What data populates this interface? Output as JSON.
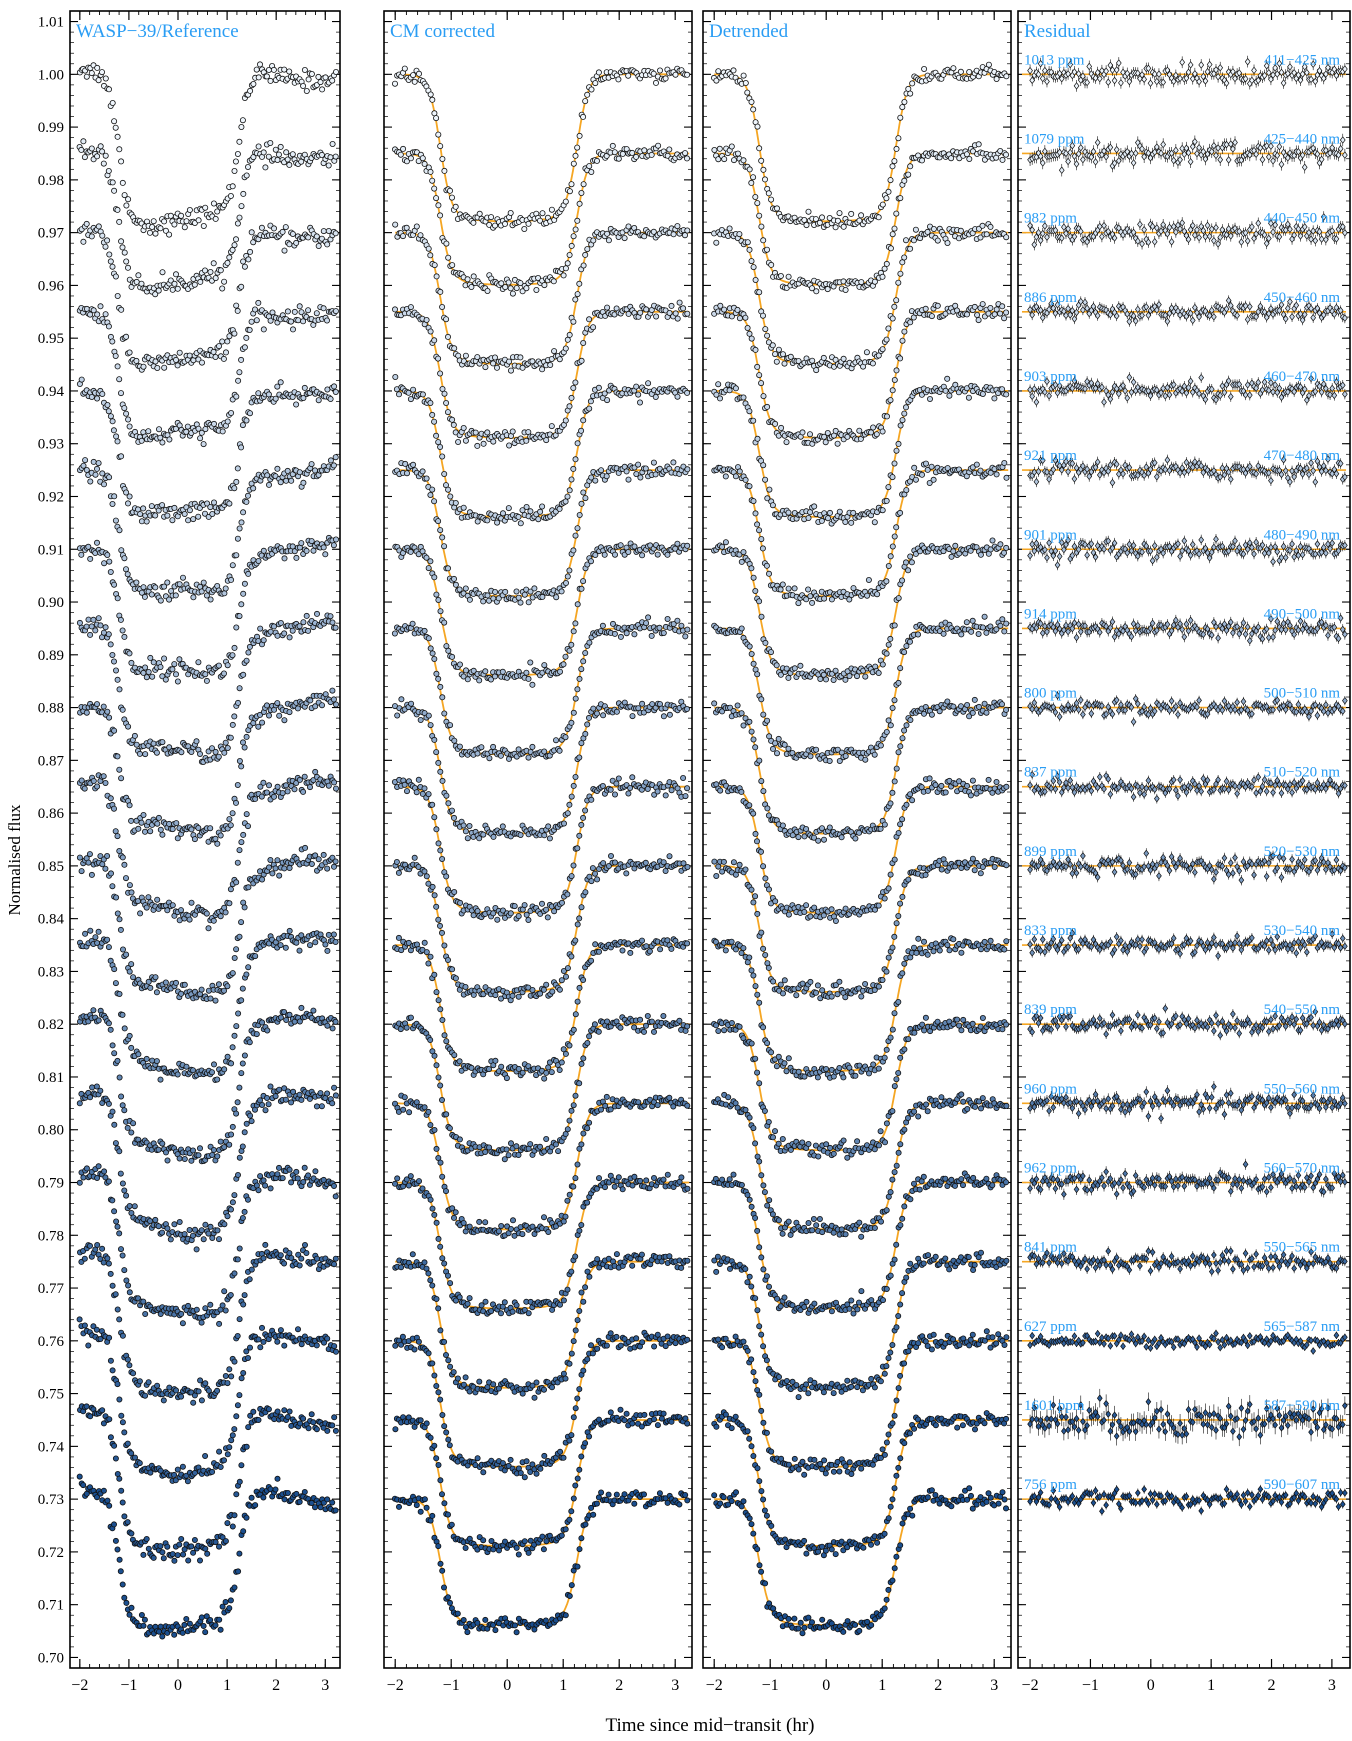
{
  "figure": {
    "ylabel": "Normalised flux",
    "xlabel": "Time since mid−transit (hr)",
    "colors": {
      "frame": "#000000",
      "label": "#2a9df4",
      "model": "#f5a623",
      "point_light": "#eef5fc",
      "point_dark": "#1b4f8f",
      "point_edge": "#111111"
    }
  },
  "chart_data": [
    {
      "type": "scatter",
      "title": "WASP−39/Reference",
      "xlim": [
        -2.2,
        3.3
      ],
      "ylim": [
        0.698,
        1.012
      ],
      "xticks": [
        -2,
        -1,
        0,
        1,
        2,
        3
      ],
      "yticks": [
        0.7,
        0.71,
        0.72,
        0.73,
        0.74,
        0.75,
        0.76,
        0.77,
        0.78,
        0.79,
        0.8,
        0.81,
        0.82,
        0.83,
        0.84,
        0.85,
        0.86,
        0.87,
        0.88,
        0.89,
        0.9,
        0.91,
        0.92,
        0.93,
        0.94,
        0.95,
        0.96,
        0.97,
        0.98,
        0.99,
        1.0,
        1.01
      ],
      "series_style": "raw",
      "series": [
        {
          "baseline": 1.0,
          "depth": 0.028,
          "ingress": -1.35,
          "egress": 1.2
        },
        {
          "baseline": 0.985,
          "depth": 0.025,
          "ingress": -1.35,
          "egress": 1.2
        },
        {
          "baseline": 0.97,
          "depth": 0.025,
          "ingress": -1.35,
          "egress": 1.2
        },
        {
          "baseline": 0.955,
          "depth": 0.024,
          "ingress": -1.35,
          "egress": 1.2
        },
        {
          "baseline": 0.94,
          "depth": 0.024,
          "ingress": -1.35,
          "egress": 1.2
        },
        {
          "baseline": 0.925,
          "depth": 0.024,
          "ingress": -1.35,
          "egress": 1.2
        },
        {
          "baseline": 0.91,
          "depth": 0.024,
          "ingress": -1.35,
          "egress": 1.2
        },
        {
          "baseline": 0.895,
          "depth": 0.024,
          "ingress": -1.35,
          "egress": 1.2
        },
        {
          "baseline": 0.88,
          "depth": 0.024,
          "ingress": -1.35,
          "egress": 1.2
        },
        {
          "baseline": 0.865,
          "depth": 0.024,
          "ingress": -1.35,
          "egress": 1.2
        },
        {
          "baseline": 0.85,
          "depth": 0.024,
          "ingress": -1.35,
          "egress": 1.2
        },
        {
          "baseline": 0.835,
          "depth": 0.024,
          "ingress": -1.35,
          "egress": 1.2
        },
        {
          "baseline": 0.82,
          "depth": 0.024,
          "ingress": -1.35,
          "egress": 1.2
        },
        {
          "baseline": 0.805,
          "depth": 0.024,
          "ingress": -1.35,
          "egress": 1.2
        },
        {
          "baseline": 0.79,
          "depth": 0.024,
          "ingress": -1.35,
          "egress": 1.2
        },
        {
          "baseline": 0.775,
          "depth": 0.024,
          "ingress": -1.35,
          "egress": 1.2
        },
        {
          "baseline": 0.76,
          "depth": 0.024,
          "ingress": -1.35,
          "egress": 1.2
        },
        {
          "baseline": 0.745,
          "depth": 0.024,
          "ingress": -1.35,
          "egress": 1.2
        },
        {
          "baseline": 0.73,
          "depth": 0.024,
          "ingress": -1.35,
          "egress": 1.2
        }
      ]
    },
    {
      "type": "scatter",
      "title": "CM corrected",
      "xlim": [
        -2.2,
        3.3
      ],
      "ylim": [
        0.698,
        1.012
      ],
      "xticks": [
        -2,
        -1,
        0,
        1,
        2,
        3
      ],
      "series_style": "model",
      "series": [
        {
          "baseline": 1.0,
          "depth": 0.028
        },
        {
          "baseline": 0.985,
          "depth": 0.025
        },
        {
          "baseline": 0.97,
          "depth": 0.025
        },
        {
          "baseline": 0.955,
          "depth": 0.024
        },
        {
          "baseline": 0.94,
          "depth": 0.024
        },
        {
          "baseline": 0.925,
          "depth": 0.024
        },
        {
          "baseline": 0.91,
          "depth": 0.024
        },
        {
          "baseline": 0.895,
          "depth": 0.024
        },
        {
          "baseline": 0.88,
          "depth": 0.024
        },
        {
          "baseline": 0.865,
          "depth": 0.024
        },
        {
          "baseline": 0.85,
          "depth": 0.024
        },
        {
          "baseline": 0.835,
          "depth": 0.024
        },
        {
          "baseline": 0.82,
          "depth": 0.024
        },
        {
          "baseline": 0.805,
          "depth": 0.024
        },
        {
          "baseline": 0.79,
          "depth": 0.024
        },
        {
          "baseline": 0.775,
          "depth": 0.024
        },
        {
          "baseline": 0.76,
          "depth": 0.024
        },
        {
          "baseline": 0.745,
          "depth": 0.024
        },
        {
          "baseline": 0.73,
          "depth": 0.024
        }
      ]
    },
    {
      "type": "scatter",
      "title": "Detrended",
      "xlim": [
        -2.2,
        3.3
      ],
      "ylim": [
        0.698,
        1.012
      ],
      "xticks": [
        -2,
        -1,
        0,
        1,
        2,
        3
      ],
      "series_style": "model",
      "series": [
        {
          "baseline": 1.0,
          "depth": 0.028
        },
        {
          "baseline": 0.985,
          "depth": 0.025
        },
        {
          "baseline": 0.97,
          "depth": 0.025
        },
        {
          "baseline": 0.955,
          "depth": 0.024
        },
        {
          "baseline": 0.94,
          "depth": 0.024
        },
        {
          "baseline": 0.925,
          "depth": 0.024
        },
        {
          "baseline": 0.91,
          "depth": 0.024
        },
        {
          "baseline": 0.895,
          "depth": 0.024
        },
        {
          "baseline": 0.88,
          "depth": 0.024
        },
        {
          "baseline": 0.865,
          "depth": 0.024
        },
        {
          "baseline": 0.85,
          "depth": 0.024
        },
        {
          "baseline": 0.835,
          "depth": 0.024
        },
        {
          "baseline": 0.82,
          "depth": 0.024
        },
        {
          "baseline": 0.805,
          "depth": 0.024
        },
        {
          "baseline": 0.79,
          "depth": 0.024
        },
        {
          "baseline": 0.775,
          "depth": 0.024
        },
        {
          "baseline": 0.76,
          "depth": 0.024
        },
        {
          "baseline": 0.745,
          "depth": 0.024
        },
        {
          "baseline": 0.73,
          "depth": 0.024
        }
      ]
    },
    {
      "type": "scatter",
      "title": "Residual",
      "xlim": [
        -2.2,
        3.3
      ],
      "ylim": [
        0.698,
        1.012
      ],
      "xticks": [
        -2,
        -1,
        0,
        1,
        2,
        3
      ],
      "series_style": "residual",
      "series": [
        {
          "baseline": 1.0,
          "rms_ppm": 1013,
          "rms_label": "1013 ppm",
          "band": "411−425 nm"
        },
        {
          "baseline": 0.985,
          "rms_ppm": 1079,
          "rms_label": "1079 ppm",
          "band": "425−440 nm"
        },
        {
          "baseline": 0.97,
          "rms_ppm": 982,
          "rms_label": "982 ppm",
          "band": "440−450 nm"
        },
        {
          "baseline": 0.955,
          "rms_ppm": 886,
          "rms_label": "886 ppm",
          "band": "450−460 nm"
        },
        {
          "baseline": 0.94,
          "rms_ppm": 903,
          "rms_label": "903 ppm",
          "band": "460−470 nm"
        },
        {
          "baseline": 0.925,
          "rms_ppm": 921,
          "rms_label": "921 ppm",
          "band": "470−480 nm"
        },
        {
          "baseline": 0.91,
          "rms_ppm": 901,
          "rms_label": "901 ppm",
          "band": "480−490 nm"
        },
        {
          "baseline": 0.895,
          "rms_ppm": 914,
          "rms_label": "914 ppm",
          "band": "490−500 nm"
        },
        {
          "baseline": 0.88,
          "rms_ppm": 800,
          "rms_label": "800 ppm",
          "band": "500−510 nm"
        },
        {
          "baseline": 0.865,
          "rms_ppm": 837,
          "rms_label": "837 ppm",
          "band": "510−520 nm"
        },
        {
          "baseline": 0.85,
          "rms_ppm": 899,
          "rms_label": "899 ppm",
          "band": "520−530 nm"
        },
        {
          "baseline": 0.835,
          "rms_ppm": 833,
          "rms_label": "833 ppm",
          "band": "530−540 nm"
        },
        {
          "baseline": 0.82,
          "rms_ppm": 839,
          "rms_label": "839 ppm",
          "band": "540−550 nm"
        },
        {
          "baseline": 0.805,
          "rms_ppm": 960,
          "rms_label": "960 ppm",
          "band": "550−560 nm"
        },
        {
          "baseline": 0.79,
          "rms_ppm": 962,
          "rms_label": "962 ppm",
          "band": "560−570 nm"
        },
        {
          "baseline": 0.775,
          "rms_ppm": 841,
          "rms_label": "841 ppm",
          "band": "550−565 nm"
        },
        {
          "baseline": 0.76,
          "rms_ppm": 627,
          "rms_label": "627 ppm",
          "band": "565−587 nm"
        },
        {
          "baseline": 0.745,
          "rms_ppm": 1601,
          "rms_label": "1601 ppm",
          "band": "587−590 nm"
        },
        {
          "baseline": 0.73,
          "rms_ppm": 756,
          "rms_label": "756 ppm",
          "band": "590−607 nm"
        }
      ]
    }
  ]
}
